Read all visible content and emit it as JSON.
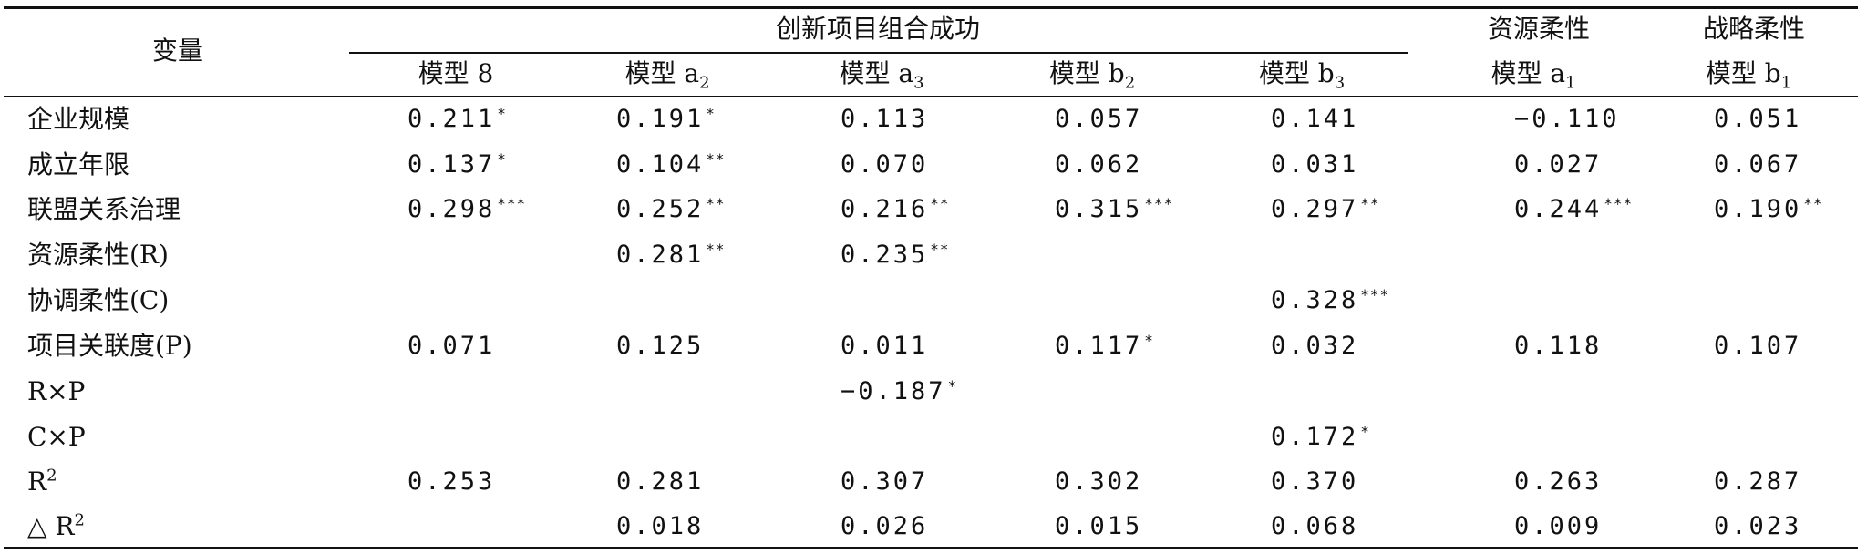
{
  "table": {
    "header": {
      "variable": "变量",
      "group_label": "创新项目组合成功",
      "resource_flex_label": "资源柔性",
      "strategic_flex_label": "战略柔性",
      "models": [
        {
          "base": "模型 8",
          "sub": ""
        },
        {
          "base": "模型 a",
          "sub": "2"
        },
        {
          "base": "模型 a",
          "sub": "3"
        },
        {
          "base": "模型 b",
          "sub": "2"
        },
        {
          "base": "模型 b",
          "sub": "3"
        },
        {
          "base": "模型 a",
          "sub": "1"
        },
        {
          "base": "模型 b",
          "sub": "1"
        }
      ]
    },
    "rows": [
      {
        "label": "企业规模",
        "label_sup": "",
        "cells": [
          {
            "value": "0.211",
            "stars": "*"
          },
          {
            "value": "0.191",
            "stars": "*"
          },
          {
            "value": "0.113",
            "stars": ""
          },
          {
            "value": "0.057",
            "stars": ""
          },
          {
            "value": "0.141",
            "stars": ""
          },
          {
            "value": "−0.110",
            "stars": ""
          },
          {
            "value": "0.051",
            "stars": ""
          }
        ]
      },
      {
        "label": "成立年限",
        "label_sup": "",
        "cells": [
          {
            "value": "0.137",
            "stars": "*"
          },
          {
            "value": "0.104",
            "stars": "**"
          },
          {
            "value": "0.070",
            "stars": ""
          },
          {
            "value": "0.062",
            "stars": ""
          },
          {
            "value": "0.031",
            "stars": ""
          },
          {
            "value": "0.027",
            "stars": ""
          },
          {
            "value": "0.067",
            "stars": ""
          }
        ]
      },
      {
        "label": "联盟关系治理",
        "label_sup": "",
        "cells": [
          {
            "value": "0.298",
            "stars": "***"
          },
          {
            "value": "0.252",
            "stars": "**"
          },
          {
            "value": "0.216",
            "stars": "**"
          },
          {
            "value": "0.315",
            "stars": "***"
          },
          {
            "value": "0.297",
            "stars": "**"
          },
          {
            "value": "0.244",
            "stars": "***"
          },
          {
            "value": "0.190",
            "stars": "**"
          }
        ]
      },
      {
        "label": "资源柔性(R)",
        "label_sup": "",
        "cells": [
          {
            "value": "",
            "stars": ""
          },
          {
            "value": "0.281",
            "stars": "**"
          },
          {
            "value": "0.235",
            "stars": "**"
          },
          {
            "value": "",
            "stars": ""
          },
          {
            "value": "",
            "stars": ""
          },
          {
            "value": "",
            "stars": ""
          },
          {
            "value": "",
            "stars": ""
          }
        ]
      },
      {
        "label": "协调柔性(C)",
        "label_sup": "",
        "cells": [
          {
            "value": "",
            "stars": ""
          },
          {
            "value": "",
            "stars": ""
          },
          {
            "value": "",
            "stars": ""
          },
          {
            "value": "",
            "stars": ""
          },
          {
            "value": "0.328",
            "stars": "***"
          },
          {
            "value": "",
            "stars": ""
          },
          {
            "value": "",
            "stars": ""
          }
        ]
      },
      {
        "label": "项目关联度(P)",
        "label_sup": "",
        "cells": [
          {
            "value": "0.071",
            "stars": ""
          },
          {
            "value": "0.125",
            "stars": ""
          },
          {
            "value": "0.011",
            "stars": ""
          },
          {
            "value": "0.117",
            "stars": "*"
          },
          {
            "value": "0.032",
            "stars": ""
          },
          {
            "value": "0.118",
            "stars": ""
          },
          {
            "value": "0.107",
            "stars": ""
          }
        ]
      },
      {
        "label": "R×P",
        "label_sup": "",
        "cells": [
          {
            "value": "",
            "stars": ""
          },
          {
            "value": "",
            "stars": ""
          },
          {
            "value": "−0.187",
            "stars": "*"
          },
          {
            "value": "",
            "stars": ""
          },
          {
            "value": "",
            "stars": ""
          },
          {
            "value": "",
            "stars": ""
          },
          {
            "value": "",
            "stars": ""
          }
        ]
      },
      {
        "label": "C×P",
        "label_sup": "",
        "cells": [
          {
            "value": "",
            "stars": ""
          },
          {
            "value": "",
            "stars": ""
          },
          {
            "value": "",
            "stars": ""
          },
          {
            "value": "",
            "stars": ""
          },
          {
            "value": "0.172",
            "stars": "*"
          },
          {
            "value": "",
            "stars": ""
          },
          {
            "value": "",
            "stars": ""
          }
        ]
      },
      {
        "label": "R",
        "label_sup": "2",
        "cells": [
          {
            "value": "0.253",
            "stars": ""
          },
          {
            "value": "0.281",
            "stars": ""
          },
          {
            "value": "0.307",
            "stars": ""
          },
          {
            "value": "0.302",
            "stars": ""
          },
          {
            "value": "0.370",
            "stars": ""
          },
          {
            "value": "0.263",
            "stars": ""
          },
          {
            "value": "0.287",
            "stars": ""
          }
        ]
      },
      {
        "label": "△ R",
        "label_sup": "2",
        "cells": [
          {
            "value": "",
            "stars": ""
          },
          {
            "value": "0.018",
            "stars": ""
          },
          {
            "value": "0.026",
            "stars": ""
          },
          {
            "value": "0.015",
            "stars": ""
          },
          {
            "value": "0.068",
            "stars": ""
          },
          {
            "value": "0.009",
            "stars": ""
          },
          {
            "value": "0.023",
            "stars": ""
          }
        ]
      }
    ]
  }
}
